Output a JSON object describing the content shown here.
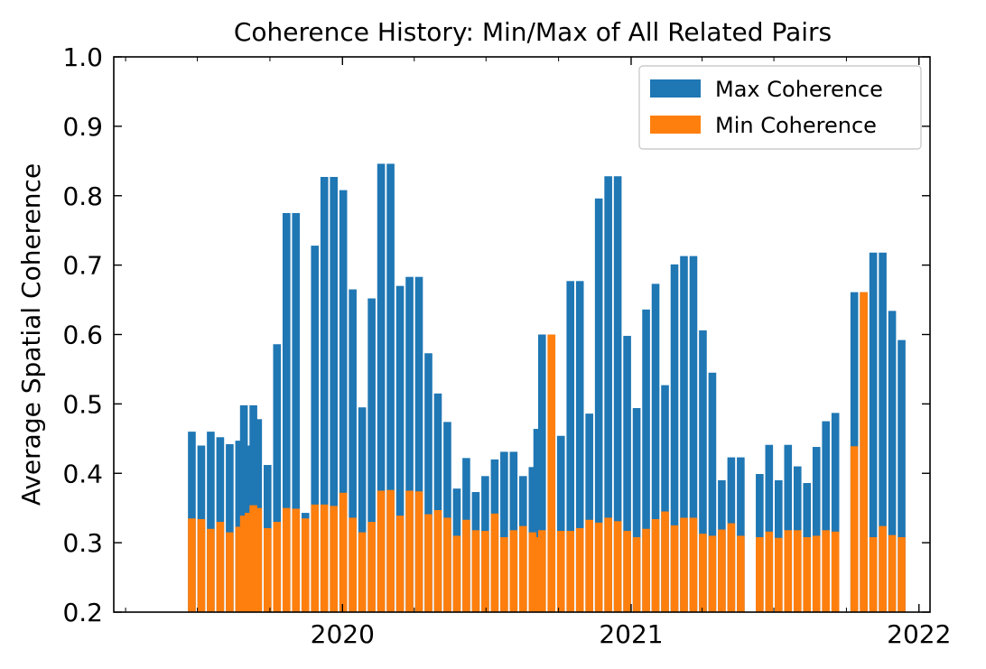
{
  "chart_data": {
    "type": "bar",
    "title": "Coherence History: Min/Max of All Related Pairs",
    "xlabel": "",
    "ylabel": "Average Spatial Coherence",
    "ylim": [
      0.2,
      1.0
    ],
    "yticks": [
      "0.2",
      "0.3",
      "0.4",
      "0.5",
      "0.6",
      "0.7",
      "0.8",
      "0.9",
      "1.0"
    ],
    "xlim": [
      "2019-03-17",
      "2022-01-15"
    ],
    "xticks": [
      {
        "date": "2020-01-01",
        "label": "2020"
      },
      {
        "date": "2021-01-01",
        "label": "2021"
      },
      {
        "date": "2022-01-01",
        "label": "2022"
      }
    ],
    "legend": {
      "position": "top-right"
    },
    "grid": false,
    "colors": {
      "max": "#1f77b4",
      "min": "#ff7f0e"
    },
    "series": [
      {
        "name": "Max Coherence",
        "data": [
          [
            "2019-06-24",
            0.46
          ],
          [
            "2019-07-06",
            0.44
          ],
          [
            "2019-07-18",
            0.46
          ],
          [
            "2019-07-30",
            0.452
          ],
          [
            "2019-08-11",
            0.442
          ],
          [
            "2019-08-23",
            0.447
          ],
          [
            "2019-08-29",
            0.498
          ],
          [
            "2019-09-04",
            0.44
          ],
          [
            "2019-09-10",
            0.498
          ],
          [
            "2019-09-16",
            0.478
          ],
          [
            "2019-09-28",
            0.412
          ],
          [
            "2019-10-10",
            0.586
          ],
          [
            "2019-10-22",
            0.775
          ],
          [
            "2019-11-03",
            0.775
          ],
          [
            "2019-11-15",
            0.343
          ],
          [
            "2019-11-27",
            0.728
          ],
          [
            "2019-12-09",
            0.827
          ],
          [
            "2019-12-21",
            0.827
          ],
          [
            "2020-01-02",
            0.808
          ],
          [
            "2020-01-14",
            0.665
          ],
          [
            "2020-01-26",
            0.495
          ],
          [
            "2020-02-07",
            0.652
          ],
          [
            "2020-02-19",
            0.846
          ],
          [
            "2020-03-02",
            0.846
          ],
          [
            "2020-03-14",
            0.67
          ],
          [
            "2020-03-26",
            0.683
          ],
          [
            "2020-04-07",
            0.683
          ],
          [
            "2020-04-19",
            0.573
          ],
          [
            "2020-05-01",
            0.515
          ],
          [
            "2020-05-13",
            0.474
          ],
          [
            "2020-05-25",
            0.378
          ],
          [
            "2020-06-06",
            0.422
          ],
          [
            "2020-06-18",
            0.373
          ],
          [
            "2020-06-30",
            0.396
          ],
          [
            "2020-07-12",
            0.42
          ],
          [
            "2020-07-24",
            0.431
          ],
          [
            "2020-08-05",
            0.431
          ],
          [
            "2020-08-17",
            0.396
          ],
          [
            "2020-08-29",
            0.409
          ],
          [
            "2020-09-04",
            0.464
          ],
          [
            "2020-09-10",
            0.6
          ],
          [
            "2020-09-22",
            0.6
          ],
          [
            "2020-10-04",
            0.454
          ],
          [
            "2020-10-16",
            0.677
          ],
          [
            "2020-10-28",
            0.677
          ],
          [
            "2020-11-09",
            0.486
          ],
          [
            "2020-11-21",
            0.796
          ],
          [
            "2020-12-03",
            0.828
          ],
          [
            "2020-12-15",
            0.828
          ],
          [
            "2020-12-27",
            0.598
          ],
          [
            "2021-01-08",
            0.494
          ],
          [
            "2021-01-20",
            0.636
          ],
          [
            "2021-02-01",
            0.673
          ],
          [
            "2021-02-13",
            0.527
          ],
          [
            "2021-02-25",
            0.701
          ],
          [
            "2021-03-09",
            0.713
          ],
          [
            "2021-03-21",
            0.713
          ],
          [
            "2021-04-02",
            0.606
          ],
          [
            "2021-04-14",
            0.545
          ],
          [
            "2021-04-26",
            0.39
          ],
          [
            "2021-05-08",
            0.423
          ],
          [
            "2021-05-20",
            0.423
          ],
          [
            "2021-06-13",
            0.399
          ],
          [
            "2021-06-25",
            0.441
          ],
          [
            "2021-07-07",
            0.39
          ],
          [
            "2021-07-19",
            0.441
          ],
          [
            "2021-07-31",
            0.41
          ],
          [
            "2021-08-12",
            0.386
          ],
          [
            "2021-08-24",
            0.438
          ],
          [
            "2021-09-05",
            0.475
          ],
          [
            "2021-09-17",
            0.487
          ],
          [
            "2021-10-11",
            0.661
          ],
          [
            "2021-10-23",
            0.661
          ],
          [
            "2021-11-04",
            0.718
          ],
          [
            "2021-11-16",
            0.718
          ],
          [
            "2021-11-28",
            0.634
          ],
          [
            "2021-12-10",
            0.592
          ]
        ]
      },
      {
        "name": "Min Coherence",
        "data": [
          [
            "2019-06-24",
            0.335
          ],
          [
            "2019-07-06",
            0.334
          ],
          [
            "2019-07-18",
            0.32
          ],
          [
            "2019-07-30",
            0.33
          ],
          [
            "2019-08-11",
            0.315
          ],
          [
            "2019-08-23",
            0.323
          ],
          [
            "2019-08-29",
            0.339
          ],
          [
            "2019-09-04",
            0.343
          ],
          [
            "2019-09-10",
            0.354
          ],
          [
            "2019-09-16",
            0.35
          ],
          [
            "2019-09-28",
            0.321
          ],
          [
            "2019-10-10",
            0.33
          ],
          [
            "2019-10-22",
            0.35
          ],
          [
            "2019-11-03",
            0.349
          ],
          [
            "2019-11-15",
            0.335
          ],
          [
            "2019-11-27",
            0.355
          ],
          [
            "2019-12-09",
            0.355
          ],
          [
            "2019-12-21",
            0.353
          ],
          [
            "2020-01-02",
            0.372
          ],
          [
            "2020-01-14",
            0.336
          ],
          [
            "2020-01-26",
            0.315
          ],
          [
            "2020-02-07",
            0.33
          ],
          [
            "2020-02-19",
            0.375
          ],
          [
            "2020-03-02",
            0.376
          ],
          [
            "2020-03-14",
            0.339
          ],
          [
            "2020-03-26",
            0.375
          ],
          [
            "2020-04-07",
            0.374
          ],
          [
            "2020-04-19",
            0.341
          ],
          [
            "2020-05-01",
            0.347
          ],
          [
            "2020-05-13",
            0.336
          ],
          [
            "2020-05-25",
            0.31
          ],
          [
            "2020-06-06",
            0.333
          ],
          [
            "2020-06-18",
            0.318
          ],
          [
            "2020-06-30",
            0.317
          ],
          [
            "2020-07-12",
            0.342
          ],
          [
            "2020-07-24",
            0.308
          ],
          [
            "2020-08-05",
            0.318
          ],
          [
            "2020-08-17",
            0.324
          ],
          [
            "2020-08-29",
            0.315
          ],
          [
            "2020-09-04",
            0.308
          ],
          [
            "2020-09-10",
            0.318
          ],
          [
            "2020-09-22",
            0.6
          ],
          [
            "2020-10-04",
            0.317
          ],
          [
            "2020-10-16",
            0.317
          ],
          [
            "2020-10-28",
            0.321
          ],
          [
            "2020-11-09",
            0.333
          ],
          [
            "2020-11-21",
            0.329
          ],
          [
            "2020-12-03",
            0.336
          ],
          [
            "2020-12-15",
            0.331
          ],
          [
            "2020-12-27",
            0.317
          ],
          [
            "2021-01-08",
            0.308
          ],
          [
            "2021-01-20",
            0.32
          ],
          [
            "2021-02-01",
            0.334
          ],
          [
            "2021-02-13",
            0.345
          ],
          [
            "2021-02-25",
            0.325
          ],
          [
            "2021-03-09",
            0.336
          ],
          [
            "2021-03-21",
            0.336
          ],
          [
            "2021-04-02",
            0.313
          ],
          [
            "2021-04-14",
            0.31
          ],
          [
            "2021-04-26",
            0.319
          ],
          [
            "2021-05-08",
            0.328
          ],
          [
            "2021-05-20",
            0.31
          ],
          [
            "2021-06-13",
            0.308
          ],
          [
            "2021-06-25",
            0.316
          ],
          [
            "2021-07-07",
            0.307
          ],
          [
            "2021-07-19",
            0.318
          ],
          [
            "2021-07-31",
            0.318
          ],
          [
            "2021-08-12",
            0.308
          ],
          [
            "2021-08-24",
            0.31
          ],
          [
            "2021-09-05",
            0.318
          ],
          [
            "2021-09-17",
            0.316
          ],
          [
            "2021-10-11",
            0.439
          ],
          [
            "2021-10-23",
            0.661
          ],
          [
            "2021-11-04",
            0.308
          ],
          [
            "2021-11-16",
            0.324
          ],
          [
            "2021-11-28",
            0.311
          ],
          [
            "2021-12-10",
            0.308
          ]
        ]
      }
    ]
  }
}
